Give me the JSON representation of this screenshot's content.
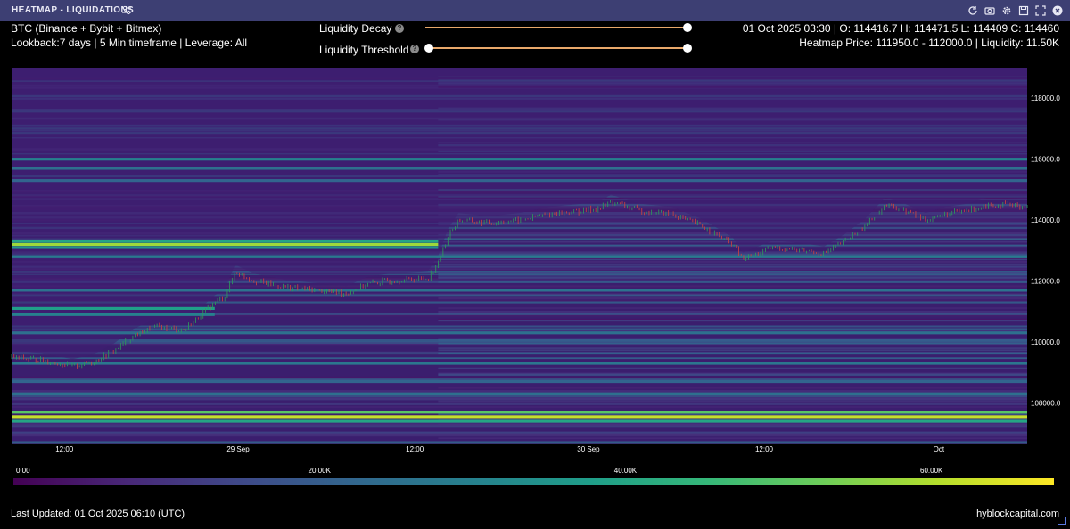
{
  "window": {
    "title": "HEATMAP - LIQUIDATIONS",
    "icons": [
      "refresh-icon",
      "camera-icon",
      "gear-icon",
      "save-icon",
      "expand-icon",
      "close-icon"
    ]
  },
  "info": {
    "asset": "BTC (Binance + Bybit + Bitmex)",
    "params": "Lookback:7 days | 5 Min timeframe | Leverage: All",
    "ohlc": "01 Oct 2025 03:30 | O: 114416.7 H: 114471.5 L: 114409 C: 114460",
    "heatmap_info": "Heatmap Price: 111950.0 - 112000.0 | Liquidity: 11.50K"
  },
  "controls": {
    "decay_label": "Liquidity Decay",
    "threshold_label": "Liquidity Threshold",
    "help_glyph": "?",
    "decay_value": 1.0,
    "threshold_range": [
      0.0,
      1.0
    ]
  },
  "footer": {
    "last_updated": "Last Updated: 01 Oct 2025 06:10 (UTC)",
    "brand": "hyblockcapital.com"
  },
  "colors": {
    "background": "#000000",
    "titlebar": "#3d3f73",
    "slider": "#e8a86a",
    "candle_up": "#2e9e5a",
    "candle_down": "#d0443e",
    "heat_low": "#3b1e6e",
    "heat_high": "#fde725"
  },
  "chart_data": {
    "type": "heatmap",
    "x_ticks": [
      "12:00",
      "29 Sep",
      "12:00",
      "30 Sep",
      "12:00",
      "Oct"
    ],
    "y_ticks": [
      "118000.0",
      "116000.0",
      "114000.0",
      "112000.0",
      "110000.0",
      "108000.0"
    ],
    "ylim": [
      106700,
      119000
    ],
    "colorbar": {
      "ticks": [
        "0.00",
        "20.00K",
        "40.00K",
        "60.00K"
      ],
      "range": [
        0,
        68000
      ],
      "colormap": "viridis"
    },
    "heat_bands": [
      {
        "price": 113200,
        "value": 58000,
        "until": 0.42
      },
      {
        "price": 113300,
        "value": 40000,
        "until": 0.42
      },
      {
        "price": 113100,
        "value": 35000,
        "until": 0.42
      },
      {
        "price": 111100,
        "value": 38000,
        "until": 0.2
      },
      {
        "price": 110900,
        "value": 30000,
        "until": 0.2
      },
      {
        "price": 107700,
        "value": 50000,
        "until": 1.0
      },
      {
        "price": 107550,
        "value": 62000,
        "until": 1.0
      },
      {
        "price": 107400,
        "value": 40000,
        "until": 1.0
      },
      {
        "price": 116000,
        "value": 30000,
        "until": 1.0
      },
      {
        "price": 115700,
        "value": 25000,
        "until": 1.0
      },
      {
        "price": 115300,
        "value": 22000,
        "until": 1.0
      },
      {
        "price": 112800,
        "value": 28000,
        "until": 1.0
      },
      {
        "price": 111700,
        "value": 26000,
        "until": 1.0
      },
      {
        "price": 110300,
        "value": 25000,
        "until": 1.0
      },
      {
        "price": 109300,
        "value": 27000,
        "until": 1.0
      },
      {
        "price": 108700,
        "value": 22000,
        "until": 1.0
      },
      {
        "price": 108300,
        "value": 25000,
        "until": 1.0
      }
    ],
    "price_path": [
      [
        0.0,
        109500
      ],
      [
        0.03,
        109400
      ],
      [
        0.06,
        109200
      ],
      [
        0.08,
        109350
      ],
      [
        0.1,
        109700
      ],
      [
        0.12,
        110200
      ],
      [
        0.14,
        110500
      ],
      [
        0.17,
        110400
      ],
      [
        0.18,
        110700
      ],
      [
        0.19,
        111000
      ],
      [
        0.2,
        111300
      ],
      [
        0.21,
        111500
      ],
      [
        0.22,
        112300
      ],
      [
        0.24,
        112000
      ],
      [
        0.27,
        111800
      ],
      [
        0.3,
        111700
      ],
      [
        0.33,
        111600
      ],
      [
        0.35,
        111900
      ],
      [
        0.37,
        112000
      ],
      [
        0.41,
        112100
      ],
      [
        0.42,
        112600
      ],
      [
        0.43,
        113500
      ],
      [
        0.44,
        114000
      ],
      [
        0.47,
        113900
      ],
      [
        0.5,
        114000
      ],
      [
        0.53,
        114200
      ],
      [
        0.56,
        114300
      ],
      [
        0.58,
        114400
      ],
      [
        0.59,
        114600
      ],
      [
        0.62,
        114300
      ],
      [
        0.65,
        114200
      ],
      [
        0.68,
        113800
      ],
      [
        0.71,
        113200
      ],
      [
        0.72,
        112700
      ],
      [
        0.75,
        113100
      ],
      [
        0.78,
        113000
      ],
      [
        0.8,
        112900
      ],
      [
        0.82,
        113300
      ],
      [
        0.84,
        113800
      ],
      [
        0.86,
        114500
      ],
      [
        0.88,
        114300
      ],
      [
        0.9,
        114000
      ],
      [
        0.92,
        114200
      ],
      [
        0.94,
        114300
      ],
      [
        0.96,
        114500
      ],
      [
        0.98,
        114500
      ],
      [
        1.0,
        114460
      ]
    ]
  }
}
